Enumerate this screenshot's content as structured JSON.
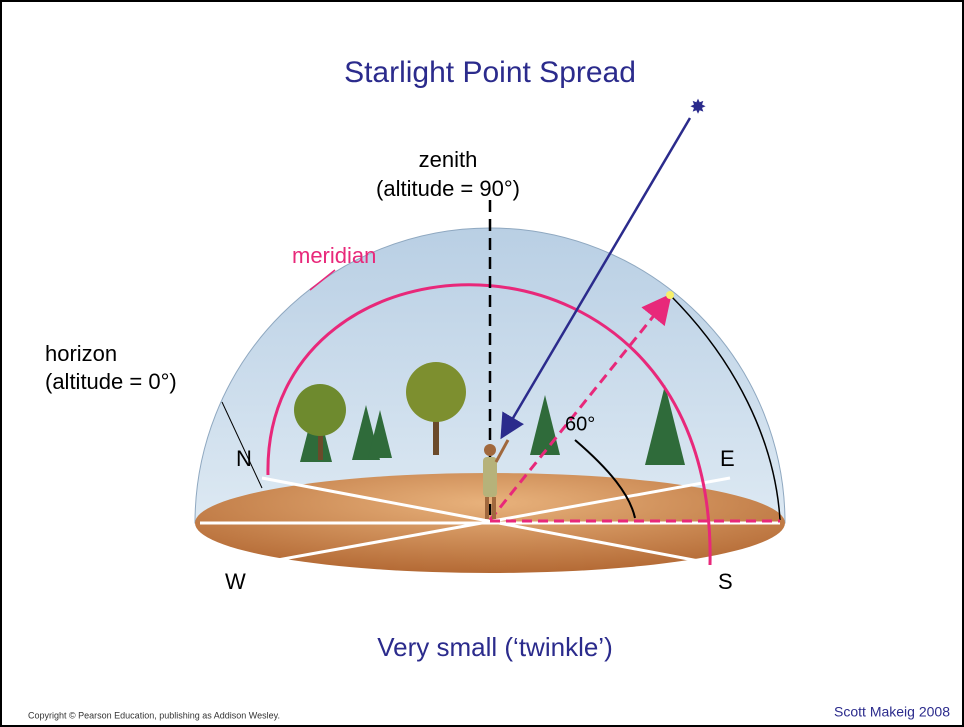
{
  "title": "Starlight Point Spread",
  "labels": {
    "zenith": "zenith",
    "zenith_altitude": "(altitude = 90°)",
    "meridian": "meridian",
    "horizon": "horizon",
    "horizon_altitude": "(altitude = 0°)",
    "north": "N",
    "east": "E",
    "west": "W",
    "south": "S",
    "angle": "60°"
  },
  "caption": "Very small (‘twinkle’)",
  "footer": {
    "copyright": "Copyright © Pearson Education, publishing as Addison Wesley.",
    "author": "Scott Makeig 2008"
  }
}
